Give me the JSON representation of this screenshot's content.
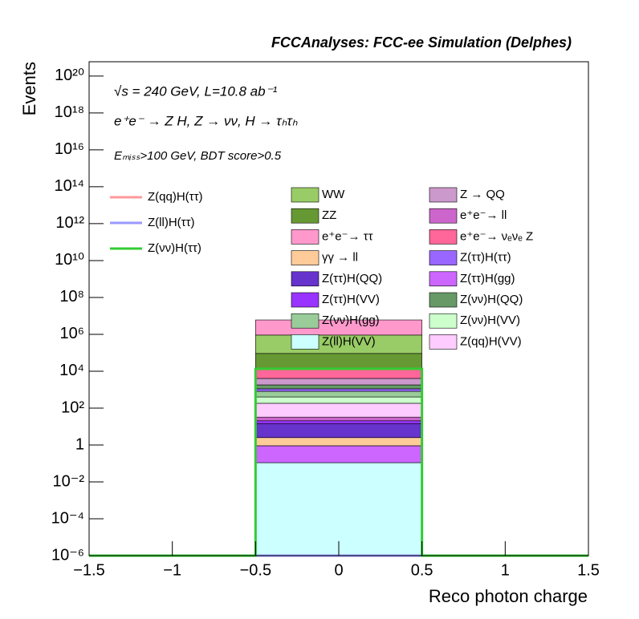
{
  "chart_data": {
    "type": "stacked_histogram",
    "title": "FCCAnalyses: FCC-ee Simulation (Delphes)",
    "annotations": [
      "√s = 240 GeV, L=10.8 ab⁻¹",
      "e⁺e⁻ → Z H, Z → νν, H → τₕτₕ",
      "Eₘᵢₛₛ>100 GeV, BDT score>0.5"
    ],
    "x_label": "Reco photon charge",
    "y_label": "Events",
    "log_y": true,
    "bins": [
      -1.5,
      -0.5,
      0.5,
      1.5
    ],
    "xlim": [
      -1.5,
      1.5
    ],
    "xticks": [
      {
        "value": -1.5,
        "label": "−1.5"
      },
      {
        "value": -1,
        "label": "−1"
      },
      {
        "value": -0.5,
        "label": "−0.5"
      },
      0,
      0.5,
      1,
      1.5
    ],
    "ylim": [
      1e-06,
      6e+20
    ],
    "yticks": [
      {
        "value": 1e-06,
        "label": "10⁻⁶"
      },
      {
        "value": 0.0001,
        "label": "10⁻⁴"
      },
      {
        "value": 0.01,
        "label": "10⁻²"
      },
      1,
      {
        "value": 100,
        "label": "10²"
      },
      {
        "value": 10000,
        "label": "10⁴"
      },
      {
        "value": 1000000.0,
        "label": "10⁶"
      },
      {
        "value": 100000000.0,
        "label": "10⁸"
      },
      {
        "value": 10000000000.0,
        "label": "10¹⁰"
      },
      {
        "value": 1000000000000.0,
        "label": "10¹²"
      },
      {
        "value": 100000000000000.0,
        "label": "10¹⁴"
      },
      {
        "value": 1e+16,
        "label": "10¹⁶"
      },
      {
        "value": 1e+18,
        "label": "10¹⁸"
      },
      {
        "value": 1e+20,
        "label": "10²⁰"
      }
    ],
    "signals": [
      {
        "name": "Z(qq)H(ττ)",
        "color": "#ff9999",
        "values": [
          0,
          0,
          0
        ]
      },
      {
        "name": "Z(ll)H(ττ)",
        "color": "#9999ff",
        "values": [
          0,
          0,
          0
        ]
      },
      {
        "name": "Z(νν)H(ττ)",
        "color": "#33cc33",
        "values": [
          0,
          13500,
          0
        ]
      }
    ],
    "series": [
      {
        "name": "WW",
        "color": "#99cc66",
        "values": [
          0,
          820000,
          0
        ]
      },
      {
        "name": "ZZ",
        "color": "#669933",
        "values": [
          0,
          78000,
          0
        ]
      },
      {
        "name": "e⁺e⁻→ ττ",
        "color": "#ff99cc",
        "values": [
          0,
          5100000,
          0
        ]
      },
      {
        "name": "γγ → ll",
        "color": "#ffcc99",
        "values": [
          0,
          1.6,
          0
        ]
      },
      {
        "name": "Z(ττ)H(QQ)",
        "color": "#6633cc",
        "values": [
          0,
          12,
          0
        ]
      },
      {
        "name": "Z(ττ)H(VV)",
        "color": "#9933ff",
        "values": [
          0,
          6,
          0
        ]
      },
      {
        "name": "Z(νν)H(gg)",
        "color": "#99cc99",
        "values": [
          0,
          410,
          0
        ]
      },
      {
        "name": "Z(ll)H(VV)",
        "color": "#ccffff",
        "values": [
          0,
          0.11,
          0
        ]
      },
      {
        "name": "Z → QQ",
        "color": "#cc99cc",
        "values": [
          0,
          2250,
          0
        ]
      },
      {
        "name": "e⁺e⁻→ ll",
        "color": "#cc66cc",
        "values": [
          0,
          12,
          0
        ]
      },
      {
        "name": "e⁺e⁻→ νₑνₑ Z",
        "color": "#ff6699",
        "values": [
          0,
          9400,
          0
        ]
      },
      {
        "name": "Z(ττ)H(ττ)",
        "color": "#9966ff",
        "values": [
          0,
          300,
          0
        ]
      },
      {
        "name": "Z(ττ)H(gg)",
        "color": "#cc66ff",
        "values": [
          0,
          0.8,
          0
        ]
      },
      {
        "name": "Z(νν)H(QQ)",
        "color": "#669966",
        "values": [
          0,
          700,
          0
        ]
      },
      {
        "name": "Z(νν)H(VV)",
        "color": "#ccffcc",
        "values": [
          0,
          220,
          0
        ]
      },
      {
        "name": "Z(qq)H(VV)",
        "color": "#ffccff",
        "values": [
          0,
          150,
          0
        ]
      }
    ]
  }
}
